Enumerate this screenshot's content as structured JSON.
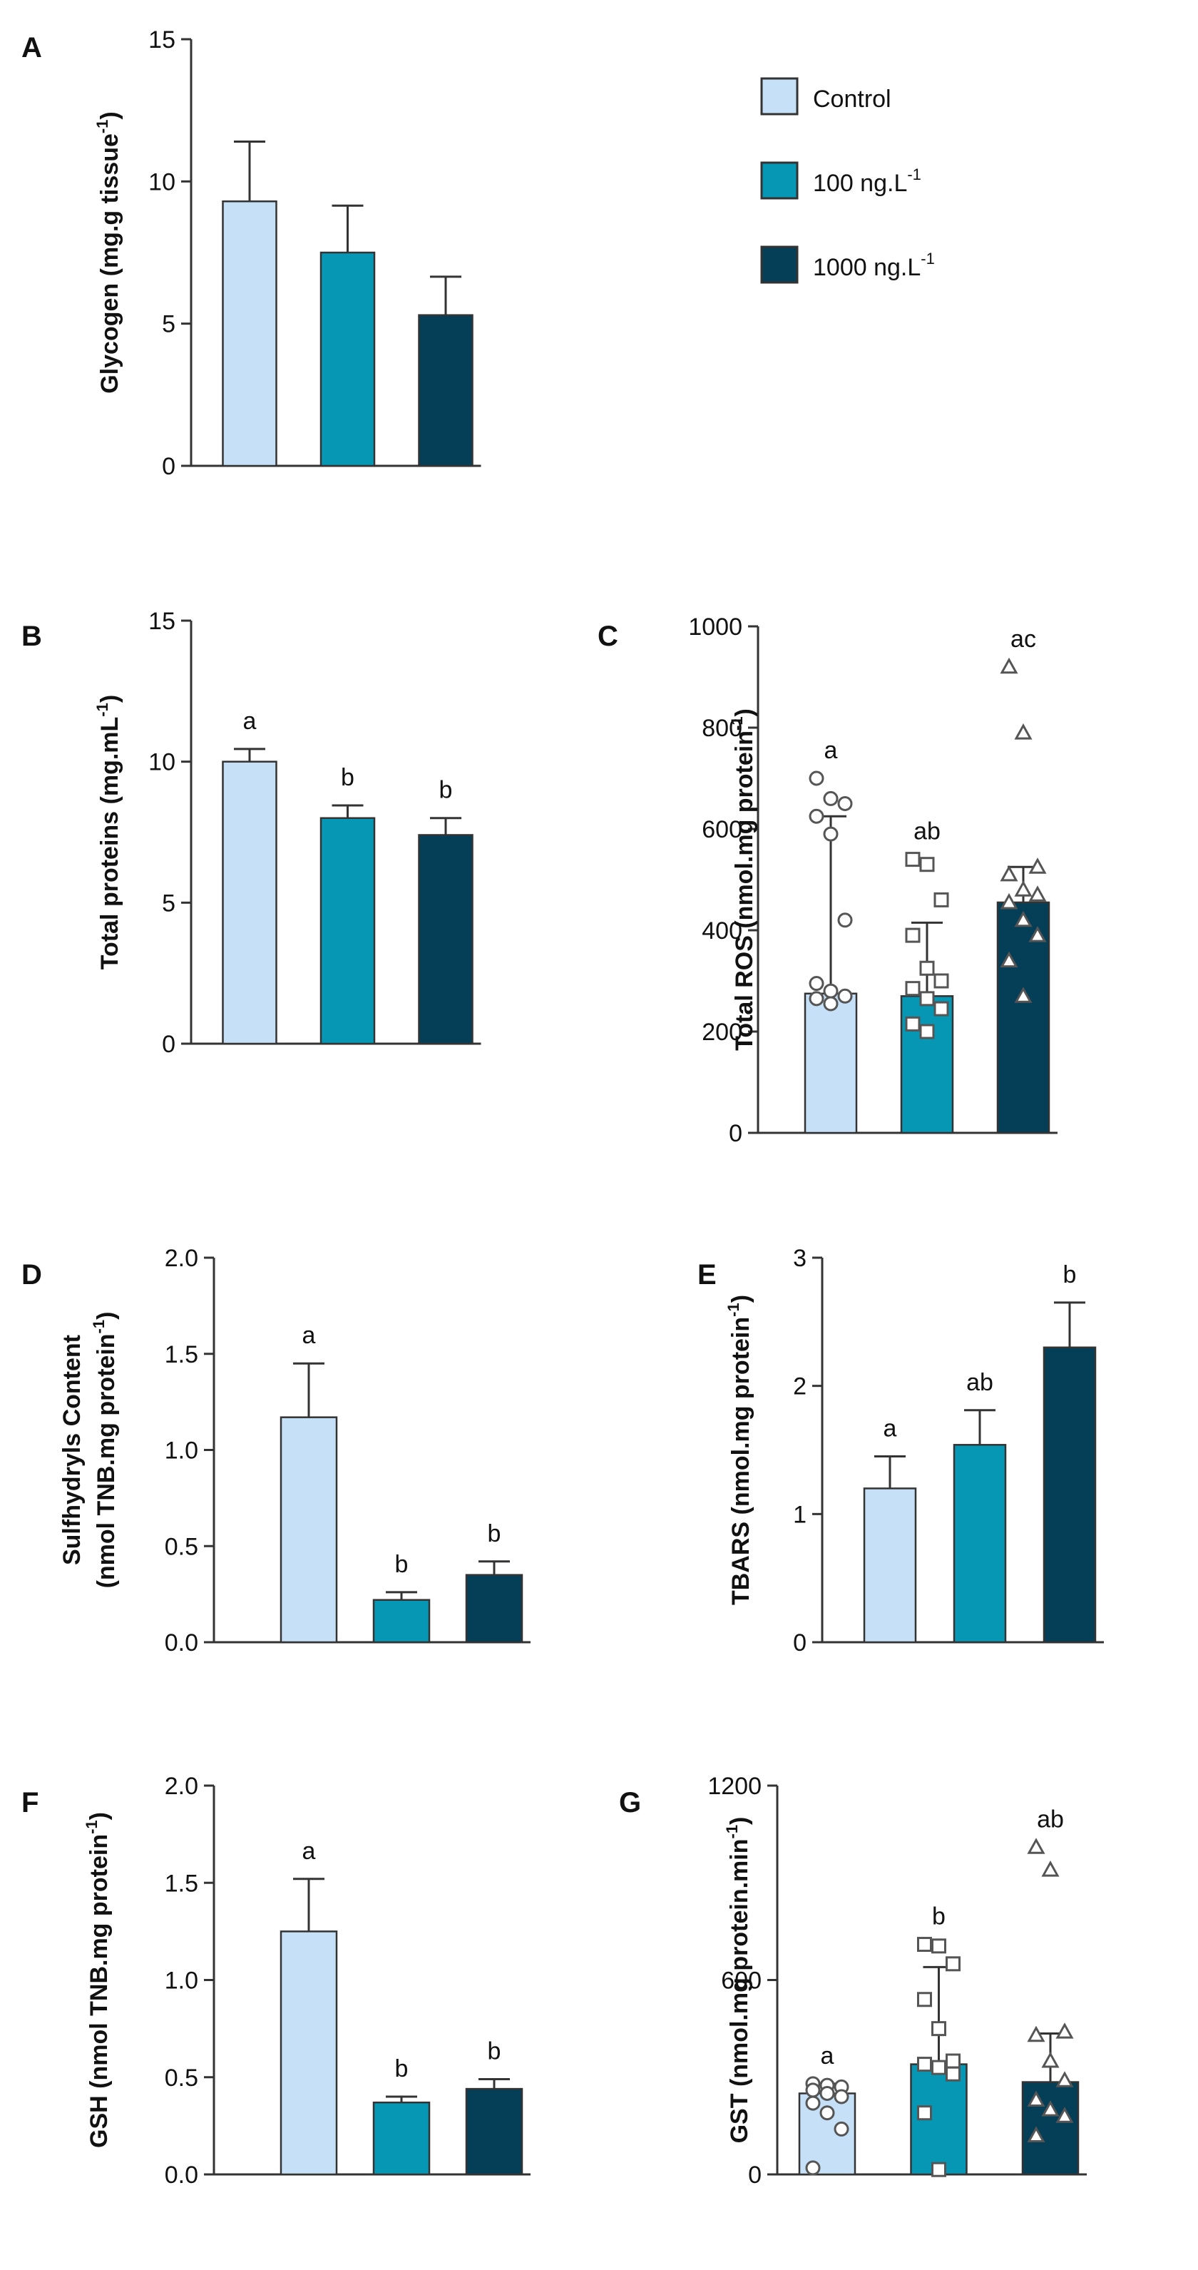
{
  "colors": {
    "control": "#c6e1f7",
    "mid": "#0597b4",
    "high": "#053e57",
    "axis": "#333333",
    "marker_fill": "#ffffff",
    "marker_stroke": "#555555"
  },
  "legend": {
    "entries": [
      {
        "label": "Control",
        "sup": "",
        "color_key": "control"
      },
      {
        "label": "100 ng.L",
        "sup": "-1",
        "color_key": "mid"
      },
      {
        "label": "1000 ng.L",
        "sup": "-1",
        "color_key": "high"
      }
    ]
  },
  "chart_data": [
    {
      "id": "A",
      "type": "bar",
      "title": "",
      "ylabel": [
        "Glycogen (mg.g tissue",
        "-1",
        ")"
      ],
      "ylim": [
        0,
        15
      ],
      "yticks": [
        "0",
        "5",
        "10",
        "15"
      ],
      "categories": [
        "Control",
        "100 ng.L-1",
        "1000 ng.L-1"
      ],
      "values": [
        9.3,
        7.5,
        5.3
      ],
      "errors": [
        2.1,
        1.65,
        1.35
      ],
      "labels": [
        "",
        "",
        ""
      ],
      "points": null
    },
    {
      "id": "B",
      "type": "bar",
      "title": "",
      "ylabel": [
        "Total proteins (mg.mL",
        "-1",
        ")"
      ],
      "ylim": [
        0,
        15
      ],
      "yticks": [
        "0",
        "5",
        "10",
        "15"
      ],
      "categories": [
        "Control",
        "100 ng.L-1",
        "1000 ng.L-1"
      ],
      "values": [
        10.0,
        8.0,
        7.4
      ],
      "errors": [
        0.45,
        0.45,
        0.6
      ],
      "labels": [
        "a",
        "b",
        "b"
      ],
      "points": null
    },
    {
      "id": "C",
      "type": "bar",
      "title": "",
      "ylabel": [
        "Total ROS (nmol.mg protein",
        "-1",
        ")"
      ],
      "ylim": [
        0,
        1000
      ],
      "yticks": [
        "0",
        "200",
        "400",
        "600",
        "800",
        "1000"
      ],
      "categories": [
        "Control",
        "100 ng.L-1",
        "1000 ng.L-1"
      ],
      "values": [
        275,
        270,
        455
      ],
      "errors": [
        350,
        145,
        70
      ],
      "labels": [
        "a",
        "ab",
        "ac"
      ],
      "points": [
        [
          700,
          660,
          650,
          625,
          590,
          420,
          295,
          280,
          270,
          265,
          255
        ],
        [
          540,
          530,
          460,
          390,
          325,
          300,
          285,
          265,
          245,
          215,
          200
        ],
        [
          920,
          790,
          525,
          510,
          480,
          470,
          455,
          420,
          390,
          340,
          270
        ]
      ]
    },
    {
      "id": "D",
      "type": "bar",
      "title": "",
      "ylabel": [
        "Sulfhydryls Content"
      ],
      "ylabel2": [
        "(nmol TNB.mg protein",
        "-1",
        ")"
      ],
      "ylim": [
        0,
        2
      ],
      "yticks": [
        "0.0",
        "0.5",
        "1.0",
        "1.5",
        "2.0"
      ],
      "categories": [
        "Control",
        "100 ng.L-1",
        "1000 ng.L-1"
      ],
      "values": [
        1.17,
        0.22,
        0.35
      ],
      "errors": [
        0.28,
        0.04,
        0.07
      ],
      "labels": [
        "a",
        "b",
        "b"
      ],
      "points": null
    },
    {
      "id": "E",
      "type": "bar",
      "title": "",
      "ylabel": [
        "TBARS (nmol.mg protein",
        "-1",
        ")"
      ],
      "ylim": [
        0,
        3
      ],
      "yticks": [
        "0",
        "1",
        "2",
        "3"
      ],
      "categories": [
        "Control",
        "100 ng.L-1",
        "1000 ng.L-1"
      ],
      "values": [
        1.2,
        1.54,
        2.3
      ],
      "errors": [
        0.25,
        0.27,
        0.35
      ],
      "labels": [
        "a",
        "ab",
        "b"
      ],
      "points": null
    },
    {
      "id": "F",
      "type": "bar",
      "title": "",
      "ylabel": [
        "GSH (nmol TNB.mg protein",
        "-1",
        ")"
      ],
      "ylim": [
        0,
        2
      ],
      "yticks": [
        "0.0",
        "0.5",
        "1.0",
        "1.5",
        "2.0"
      ],
      "categories": [
        "Control",
        "100 ng.L-1",
        "1000 ng.L-1"
      ],
      "values": [
        1.25,
        0.37,
        0.44
      ],
      "errors": [
        0.27,
        0.03,
        0.05
      ],
      "labels": [
        "a",
        "b",
        "b"
      ],
      "points": null
    },
    {
      "id": "G",
      "type": "bar",
      "title": "",
      "ylabel": [
        "GST (nmol.mg protein.min",
        "-1",
        ")"
      ],
      "ylim": [
        0,
        1200
      ],
      "yticks": [
        "0",
        "600",
        "1200"
      ],
      "categories": [
        "Control",
        "100 ng.L-1",
        "1000 ng.L-1"
      ],
      "values": [
        250,
        340,
        285
      ],
      "errors": [
        30,
        300,
        150
      ],
      "labels": [
        "a",
        "b",
        "ab"
      ],
      "points": [
        [
          280,
          275,
          270,
          260,
          250,
          240,
          220,
          190,
          140,
          20
        ],
        [
          710,
          705,
          650,
          540,
          450,
          350,
          340,
          330,
          310,
          190,
          15
        ],
        [
          1010,
          940,
          440,
          430,
          350,
          290,
          230,
          200,
          180,
          120
        ]
      ]
    }
  ]
}
